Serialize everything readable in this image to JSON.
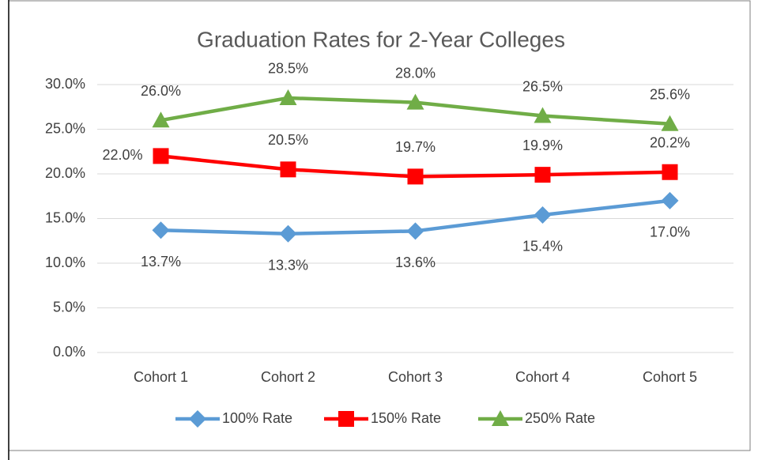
{
  "chart_data": {
    "type": "line",
    "title": "Graduation Rates for 2-Year Colleges",
    "categories": [
      "Cohort 1",
      "Cohort 2",
      "Cohort 3",
      "Cohort 4",
      "Cohort 5"
    ],
    "series": [
      {
        "name": "100% Rate",
        "color": "#5b9bd5",
        "marker": "diamond",
        "values": [
          13.7,
          13.3,
          13.6,
          15.4,
          17.0
        ],
        "value_labels": [
          "13.7%",
          "13.3%",
          "13.6%",
          "15.4%",
          "17.0%"
        ]
      },
      {
        "name": "150% Rate",
        "color": "#ff0000",
        "marker": "square",
        "values": [
          22.0,
          20.5,
          19.7,
          19.9,
          20.2
        ],
        "value_labels": [
          "22.0%",
          "20.5%",
          "19.7%",
          "19.9%",
          "20.2%"
        ]
      },
      {
        "name": "250% Rate",
        "color": "#70ad47",
        "marker": "triangle",
        "values": [
          26.0,
          28.5,
          28.0,
          26.5,
          25.6
        ],
        "value_labels": [
          "26.0%",
          "28.5%",
          "28.0%",
          "26.5%",
          "25.6%"
        ]
      }
    ],
    "ylim": [
      0,
      30
    ],
    "yticks": [
      {
        "value": 0,
        "label": "0.0%"
      },
      {
        "value": 5,
        "label": "5.0%"
      },
      {
        "value": 10,
        "label": "10.0%"
      },
      {
        "value": 15,
        "label": "15.0%"
      },
      {
        "value": 20,
        "label": "20.0%"
      },
      {
        "value": 25,
        "label": "25.0%"
      },
      {
        "value": 30,
        "label": "30.0%"
      }
    ],
    "grid": true,
    "legend": "bottom"
  }
}
